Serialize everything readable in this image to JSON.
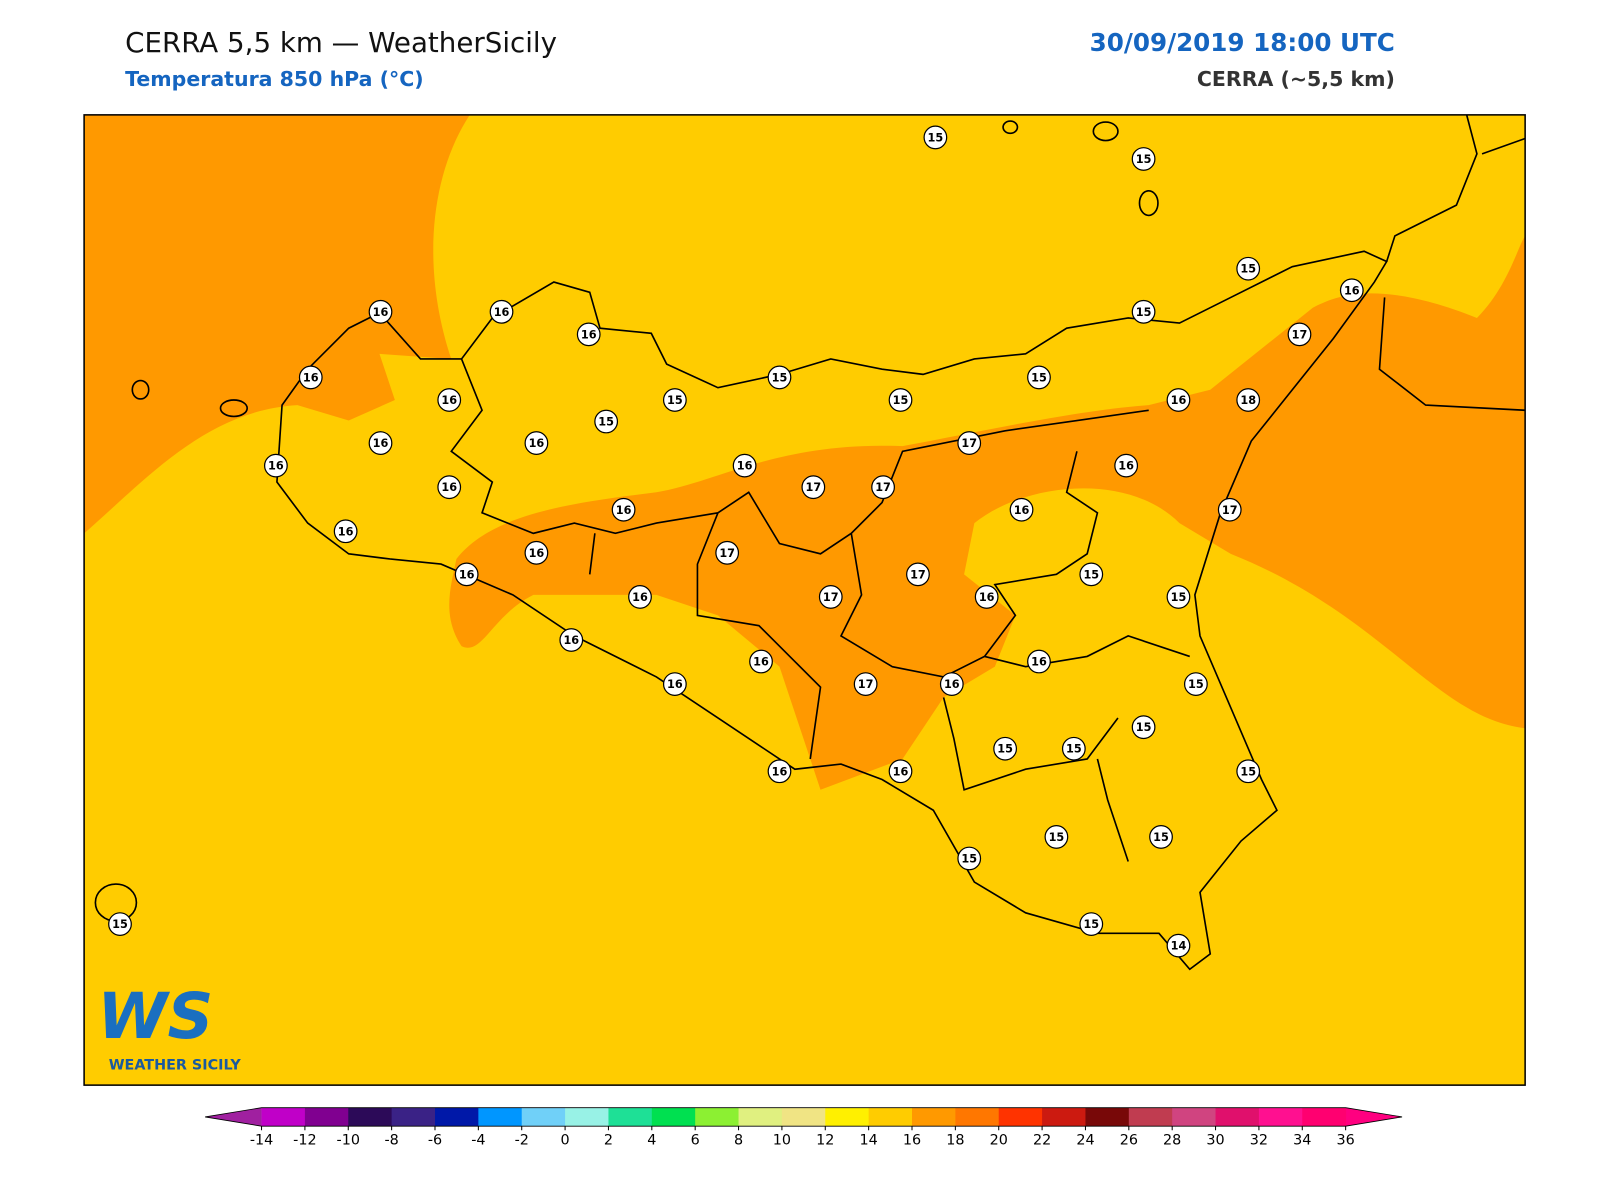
{
  "header": {
    "title": "CERRA 5,5 km — WeatherSicily",
    "subtitle": "Temperatura 850 hPa (°C)",
    "datetime": "30/09/2019 18:00 UTC",
    "model": "CERRA (~5,5 km)"
  },
  "logo": {
    "mark": "WS",
    "name": "WEATHER SICILY"
  },
  "stations": {
    "values": [
      15,
      15,
      15,
      16,
      15,
      17,
      16,
      16,
      16,
      16,
      16,
      15,
      15,
      15,
      15,
      15,
      16,
      18,
      16,
      16,
      16,
      16,
      17,
      16,
      16,
      17,
      17,
      16,
      16,
      17,
      16,
      16,
      17,
      16,
      15,
      17,
      17,
      16,
      16,
      15,
      16,
      16,
      16,
      16,
      17,
      16,
      15,
      15,
      15,
      15,
      16,
      16,
      15,
      15,
      15,
      15,
      15,
      14,
      15
    ]
  },
  "colorbar": {
    "ticks": [
      -14,
      -12,
      -10,
      -8,
      -6,
      -4,
      -2,
      0,
      2,
      4,
      6,
      8,
      10,
      12,
      14,
      16,
      18,
      20,
      22,
      24,
      26,
      28,
      30,
      32,
      34,
      36
    ],
    "colors": [
      "#c000c8",
      "#800090",
      "#2c0a58",
      "#3a2286",
      "#0018a8",
      "#0096ff",
      "#70d0f8",
      "#98f2e6",
      "#1ee096",
      "#00e050",
      "#8cf032",
      "#e0f080",
      "#f0e484",
      "#fff000",
      "#ffcc00",
      "#ff9900",
      "#ff7700",
      "#ff3300",
      "#cc1a10",
      "#780808",
      "#c03c50",
      "#d04480",
      "#e0106c",
      "#ff1090",
      "#ff0070"
    ],
    "under_color": "#a020a0",
    "over_color": "#ff0080"
  },
  "map": {
    "field_color": "#ffcc00",
    "warm_color": "#ff9900"
  }
}
